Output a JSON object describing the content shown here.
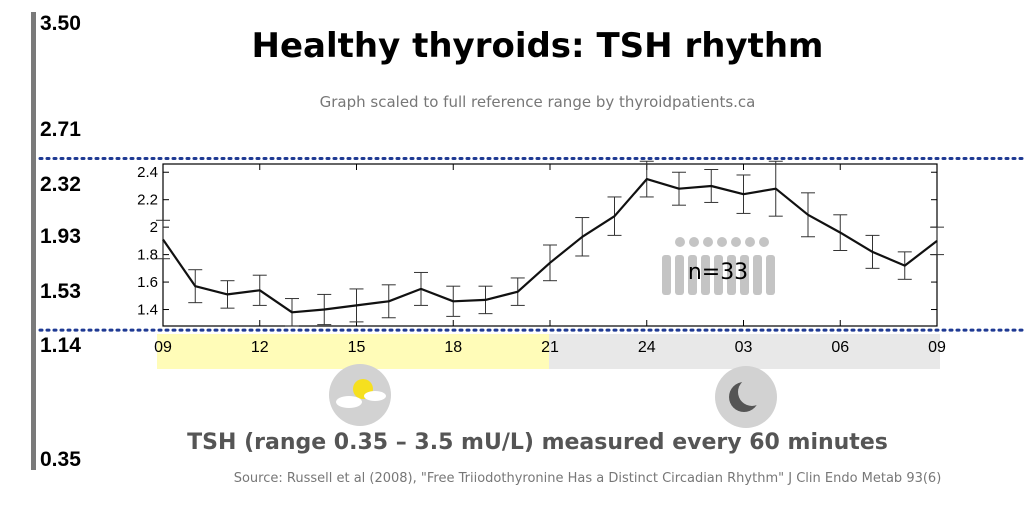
{
  "header": {
    "title": "Healthy thyroids: TSH rhythm",
    "subtitle": "Graph scaled to full reference range by thyroidpatients.ca"
  },
  "range_scale": {
    "labels": [
      "3.50",
      "2.71",
      "2.32",
      "1.93",
      "1.53",
      "1.14",
      "0.35"
    ]
  },
  "footer": {
    "caption": "TSH (range 0.35 – 3.5 mU/L) measured every 60 minutes",
    "source": "Source: Russell et al (2008), \"Free Triiodothyronine Has a Distinct Circadian Rhythm\" J Clin Endo Metab 93(6)"
  },
  "icons": {
    "day": "sun-behind-cloud-icon",
    "night": "crescent-moon-icon",
    "people": "people-group-icon"
  },
  "colors": {
    "day_band": "#fffcb8",
    "night_band": "#e8e8e8",
    "reference_lines": "#1f3a93",
    "range_bar": "#7a7a7a"
  },
  "annotation": {
    "n_label": "n=33"
  },
  "chart_data": {
    "type": "line",
    "title": "Healthy thyroids: TSH rhythm",
    "xlabel": "",
    "ylabel": "",
    "x_ticks": [
      "09",
      "12",
      "15",
      "18",
      "21",
      "24",
      "03",
      "06",
      "09"
    ],
    "y_ticks": [
      "1.4",
      "1.6",
      "1.8",
      "2",
      "2.2",
      "2.4"
    ],
    "ylim": [
      1.28,
      2.46
    ],
    "reference_lines": [
      2.5,
      1.25
    ],
    "series": [
      {
        "x": [
          9,
          10,
          11,
          12,
          13,
          14,
          15,
          16,
          17,
          18,
          19,
          20,
          21,
          22,
          23,
          24,
          25,
          26,
          27,
          28,
          29,
          30,
          31,
          32,
          33
        ],
        "values": [
          1.91,
          1.57,
          1.51,
          1.54,
          1.38,
          1.4,
          1.43,
          1.46,
          1.55,
          1.46,
          1.47,
          1.53,
          1.74,
          1.93,
          2.08,
          2.35,
          2.28,
          2.3,
          2.24,
          2.28,
          2.09,
          1.96,
          1.82,
          1.72,
          1.9
        ],
        "errors": [
          0.14,
          0.12,
          0.1,
          0.11,
          0.1,
          0.11,
          0.12,
          0.12,
          0.12,
          0.11,
          0.1,
          0.1,
          0.13,
          0.14,
          0.14,
          0.13,
          0.12,
          0.12,
          0.14,
          0.2,
          0.16,
          0.13,
          0.12,
          0.1,
          0.1
        ]
      }
    ],
    "grid": false
  }
}
